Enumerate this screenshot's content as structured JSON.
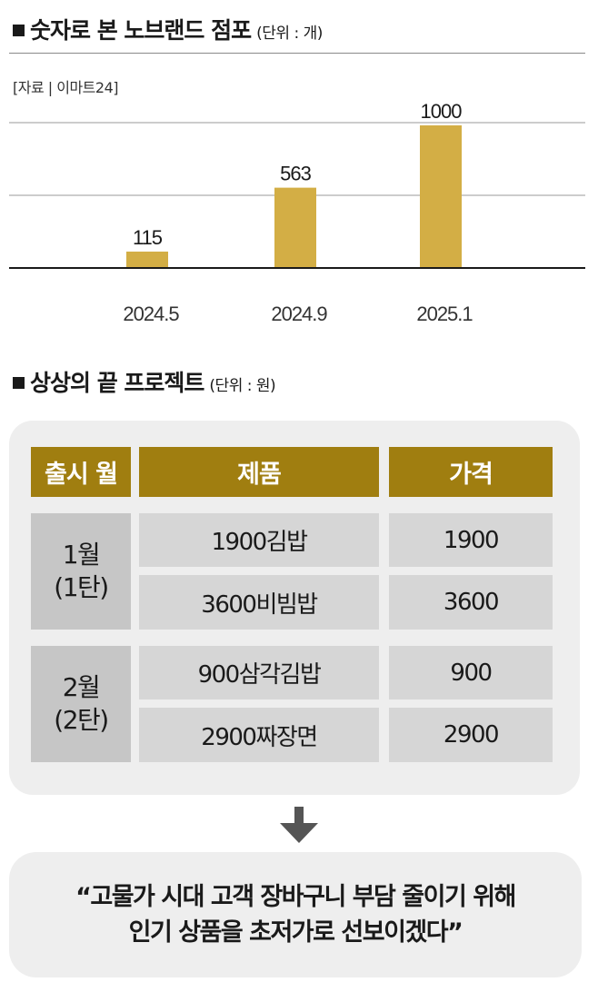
{
  "section1": {
    "title": "숫자로 본 노브랜드 점포",
    "unit": "(단위 : 개)",
    "source": "[자료 | 이마트24]"
  },
  "chart_data": {
    "type": "bar",
    "categories": [
      "2024.5",
      "2024.9",
      "2025.1"
    ],
    "values": [
      115,
      563,
      1000
    ],
    "title": "숫자로 본 노브랜드 점포",
    "ylabel": "",
    "unit": "개",
    "ylim": [
      0,
      1100
    ],
    "grid": true,
    "bar_color": "#d3ae45"
  },
  "section2": {
    "title": "상상의 끝 프로젝트",
    "unit": "(단위 : 원)"
  },
  "table": {
    "headers": [
      "출시 월",
      "제품",
      "가격"
    ],
    "groups": [
      {
        "month": "1월",
        "round": "(1탄)",
        "rows": [
          {
            "product": "1900김밥",
            "price": "1900"
          },
          {
            "product": "3600비빔밥",
            "price": "3600"
          }
        ]
      },
      {
        "month": "2월",
        "round": "(2탄)",
        "rows": [
          {
            "product": "900삼각김밥",
            "price": "900"
          },
          {
            "product": "2900짜장면",
            "price": "2900"
          }
        ]
      }
    ]
  },
  "quote": {
    "line1": "“고물가 시대 고객 장바구니 부담 줄이기 위해",
    "line2": "인기 상품을 초저가로 선보이겠다”"
  },
  "colors": {
    "header_gold": "#a07e10",
    "bar_gold": "#d3ae45",
    "panel_gray": "#eeeeee",
    "cell_gray": "#d6d6d6",
    "month_gray": "#c6c6c6"
  }
}
